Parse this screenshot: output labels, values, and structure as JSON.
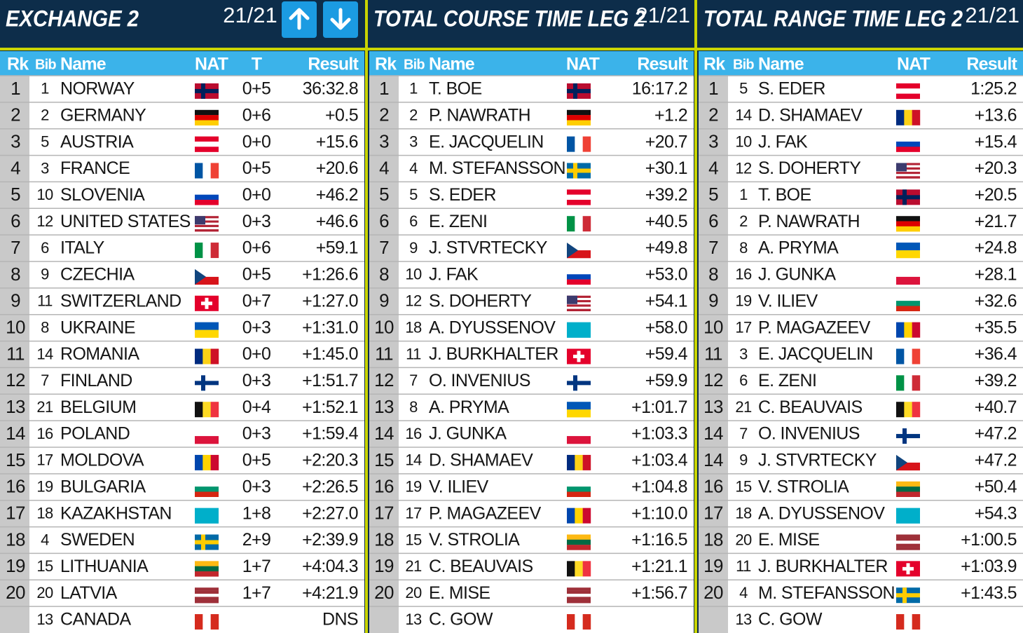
{
  "panels": [
    {
      "title": "EXCHANGE 2",
      "counter": "21/21",
      "columns": [
        "Rk",
        "Bib",
        "Name",
        "NAT",
        "T",
        "Result"
      ],
      "rows": [
        {
          "rk": 1,
          "bib": 1,
          "name": "NORWAY",
          "t": "0+5",
          "result": "36:32.8"
        },
        {
          "rk": 2,
          "bib": 2,
          "name": "GERMANY",
          "t": "0+6",
          "result": "+0.5"
        },
        {
          "rk": 3,
          "bib": 5,
          "name": "AUSTRIA",
          "t": "0+0",
          "result": "+15.6"
        },
        {
          "rk": 4,
          "bib": 3,
          "name": "FRANCE",
          "t": "0+5",
          "result": "+20.6"
        },
        {
          "rk": 5,
          "bib": 10,
          "name": "SLOVENIA",
          "t": "0+0",
          "result": "+46.2"
        },
        {
          "rk": 6,
          "bib": 12,
          "name": "UNITED STATES",
          "t": "0+3",
          "result": "+46.6"
        },
        {
          "rk": 7,
          "bib": 6,
          "name": "ITALY",
          "t": "0+6",
          "result": "+59.1"
        },
        {
          "rk": 8,
          "bib": 9,
          "name": "CZECHIA",
          "t": "0+5",
          "result": "+1:26.6"
        },
        {
          "rk": 9,
          "bib": 11,
          "name": "SWITZERLAND",
          "t": "0+7",
          "result": "+1:27.0"
        },
        {
          "rk": 10,
          "bib": 8,
          "name": "UKRAINE",
          "t": "0+3",
          "result": "+1:31.0"
        },
        {
          "rk": 11,
          "bib": 14,
          "name": "ROMANIA",
          "t": "0+0",
          "result": "+1:45.0"
        },
        {
          "rk": 12,
          "bib": 7,
          "name": "FINLAND",
          "t": "0+3",
          "result": "+1:51.7"
        },
        {
          "rk": 13,
          "bib": 21,
          "name": "BELGIUM",
          "t": "0+4",
          "result": "+1:52.1"
        },
        {
          "rk": 14,
          "bib": 16,
          "name": "POLAND",
          "t": "0+3",
          "result": "+1:59.4"
        },
        {
          "rk": 15,
          "bib": 17,
          "name": "MOLDOVA",
          "t": "0+5",
          "result": "+2:20.3"
        },
        {
          "rk": 16,
          "bib": 19,
          "name": "BULGARIA",
          "t": "0+3",
          "result": "+2:26.5"
        },
        {
          "rk": 17,
          "bib": 18,
          "name": "KAZAKHSTAN",
          "t": "1+8",
          "result": "+2:27.0"
        },
        {
          "rk": 18,
          "bib": 4,
          "name": "SWEDEN",
          "t": "2+9",
          "result": "+2:39.9"
        },
        {
          "rk": 19,
          "bib": 15,
          "name": "LITHUANIA",
          "t": "1+7",
          "result": "+4:04.3"
        },
        {
          "rk": 20,
          "bib": 20,
          "name": "LATVIA",
          "t": "1+7",
          "result": "+4:21.9"
        },
        {
          "bib": 13,
          "name": "CANADA",
          "result": "DNS"
        }
      ]
    },
    {
      "title": "TOTAL COURSE TIME LEG 2",
      "counter": "21/21",
      "columns": [
        "Rk",
        "Bib",
        "Name",
        "NAT",
        "Result"
      ],
      "rows": [
        {
          "rk": 1,
          "bib": 1,
          "name": "T. BOE",
          "result": "16:17.2"
        },
        {
          "rk": 2,
          "bib": 2,
          "name": "P. NAWRATH",
          "result": "+1.2"
        },
        {
          "rk": 3,
          "bib": 3,
          "name": "E. JACQUELIN",
          "result": "+20.7"
        },
        {
          "rk": 4,
          "bib": 4,
          "name": "M. STEFANSSON",
          "result": "+30.1"
        },
        {
          "rk": 5,
          "bib": 5,
          "name": "S. EDER",
          "result": "+39.2"
        },
        {
          "rk": 6,
          "bib": 6,
          "name": "E. ZENI",
          "result": "+40.5"
        },
        {
          "rk": 7,
          "bib": 9,
          "name": "J. STVRTECKY",
          "result": "+49.8"
        },
        {
          "rk": 8,
          "bib": 10,
          "name": "J. FAK",
          "result": "+53.0"
        },
        {
          "rk": 9,
          "bib": 12,
          "name": "S. DOHERTY",
          "result": "+54.1"
        },
        {
          "rk": 10,
          "bib": 18,
          "name": "A. DYUSSENOV",
          "result": "+58.0"
        },
        {
          "rk": 11,
          "bib": 11,
          "name": "J. BURKHALTER",
          "result": "+59.4"
        },
        {
          "rk": 12,
          "bib": 7,
          "name": "O. INVENIUS",
          "result": "+59.9"
        },
        {
          "rk": 13,
          "bib": 8,
          "name": "A. PRYMA",
          "result": "+1:01.7"
        },
        {
          "rk": 14,
          "bib": 16,
          "name": "J. GUNKA",
          "result": "+1:03.3"
        },
        {
          "rk": 15,
          "bib": 14,
          "name": "D. SHAMAEV",
          "result": "+1:03.4"
        },
        {
          "rk": 16,
          "bib": 19,
          "name": "V. ILIEV",
          "result": "+1:04.8"
        },
        {
          "rk": 17,
          "bib": 17,
          "name": "P. MAGAZEEV",
          "result": "+1:10.0"
        },
        {
          "rk": 18,
          "bib": 15,
          "name": "V. STROLIA",
          "result": "+1:16.5"
        },
        {
          "rk": 19,
          "bib": 21,
          "name": "C. BEAUVAIS",
          "result": "+1:21.1"
        },
        {
          "rk": 20,
          "bib": 20,
          "name": "E. MISE",
          "result": "+1:56.7"
        },
        {
          "bib": 13,
          "name": "C. GOW"
        }
      ]
    },
    {
      "title": "TOTAL RANGE TIME LEG 2",
      "counter": "21/21",
      "columns": [
        "Rk",
        "Bib",
        "Name",
        "NAT",
        "Result"
      ],
      "rows": [
        {
          "rk": 1,
          "bib": 5,
          "name": "S. EDER",
          "result": "1:25.2"
        },
        {
          "rk": 2,
          "bib": 14,
          "name": "D. SHAMAEV",
          "result": "+13.6"
        },
        {
          "rk": 3,
          "bib": 10,
          "name": "J. FAK",
          "result": "+15.4"
        },
        {
          "rk": 4,
          "bib": 12,
          "name": "S. DOHERTY",
          "result": "+20.3"
        },
        {
          "rk": 5,
          "bib": 1,
          "name": "T. BOE",
          "result": "+20.5"
        },
        {
          "rk": 6,
          "bib": 2,
          "name": "P. NAWRATH",
          "result": "+21.7"
        },
        {
          "rk": 7,
          "bib": 8,
          "name": "A. PRYMA",
          "result": "+24.8"
        },
        {
          "rk": 8,
          "bib": 16,
          "name": "J. GUNKA",
          "result": "+28.1"
        },
        {
          "rk": 9,
          "bib": 19,
          "name": "V. ILIEV",
          "result": "+32.6"
        },
        {
          "rk": 10,
          "bib": 17,
          "name": "P. MAGAZEEV",
          "result": "+35.5"
        },
        {
          "rk": 11,
          "bib": 3,
          "name": "E. JACQUELIN",
          "result": "+36.4"
        },
        {
          "rk": 12,
          "bib": 6,
          "name": "E. ZENI",
          "result": "+39.2"
        },
        {
          "rk": 13,
          "bib": 21,
          "name": "C. BEAUVAIS",
          "result": "+40.7"
        },
        {
          "rk": 14,
          "bib": 7,
          "name": "O. INVENIUS",
          "result": "+47.2"
        },
        {
          "rk": 14,
          "bib": 9,
          "name": "J. STVRTECKY",
          "result": "+47.2"
        },
        {
          "rk": 16,
          "bib": 15,
          "name": "V. STROLIA",
          "result": "+50.4"
        },
        {
          "rk": 17,
          "bib": 18,
          "name": "A. DYUSSENOV",
          "result": "+54.3"
        },
        {
          "rk": 18,
          "bib": 20,
          "name": "E. MISE",
          "result": "+1:00.5"
        },
        {
          "rk": 19,
          "bib": 11,
          "name": "J. BURKHALTER",
          "result": "+1:03.9"
        },
        {
          "rk": 20,
          "bib": 4,
          "name": "M. STEFANSSON",
          "result": "+1:43.5"
        },
        {
          "bib": 13,
          "name": "C. GOW"
        }
      ]
    }
  ]
}
